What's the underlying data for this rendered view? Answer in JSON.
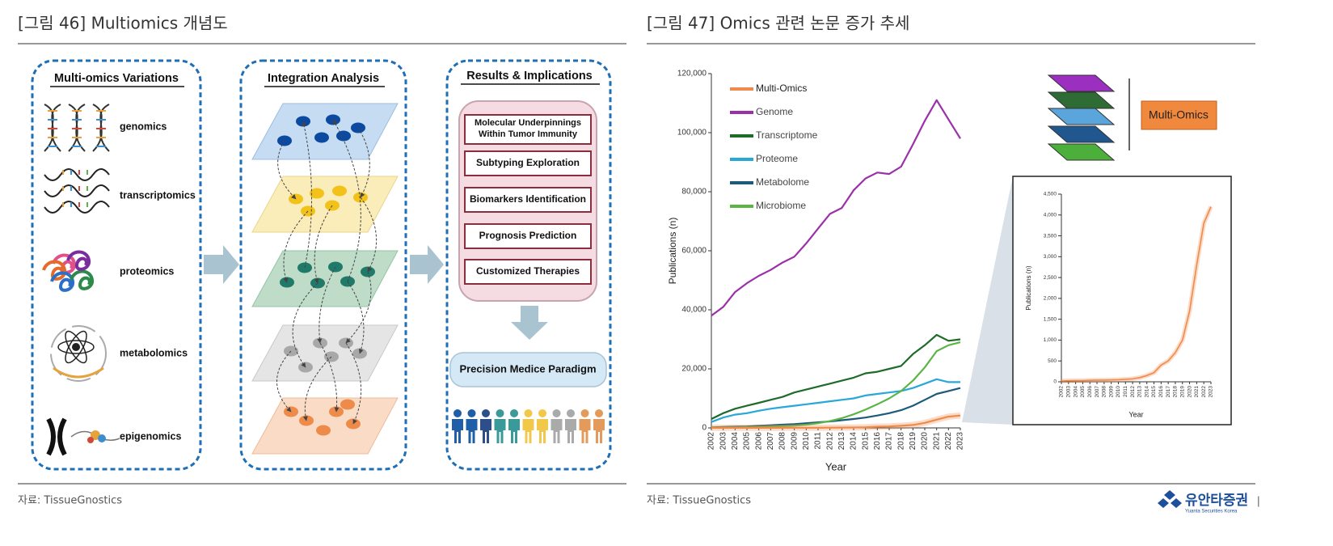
{
  "left_figure": {
    "title": "[그림 46] Multiomics 개념도",
    "source": "자료: TissueGnostics",
    "diagram": {
      "variations": {
        "header": "Multi-omics Variations",
        "items": [
          "genomics",
          "transcriptomics",
          "proteomics",
          "metabolomics",
          "epigenomics"
        ]
      },
      "integration": {
        "header": "Integration Analysis"
      },
      "results": {
        "header": "Results & Implications",
        "items": [
          [
            "Molecular Underpinnings",
            "Within Tumor Immunity"
          ],
          [
            "Subtyping Exploration"
          ],
          [
            "Biomarkers Identification"
          ],
          [
            "Prognosis Prediction"
          ],
          [
            "Customized Therapies"
          ]
        ],
        "outcome": "Precision Medice Paradigm"
      }
    }
  },
  "right_figure": {
    "title": "[그림 47] Omics 관련 논문 증가 추세",
    "source": "자료: TissueGnostics",
    "stack_label": "Multi-Omics"
  },
  "footer": {
    "logo": "유안타증권",
    "logo_sub": "Yuanta Securities Korea",
    "divider": "|"
  },
  "chart_data": [
    {
      "type": "line",
      "xlabel": "Year",
      "ylabel": "Publications (n)",
      "x": [
        2002,
        2003,
        2004,
        2005,
        2006,
        2007,
        2008,
        2009,
        2010,
        2011,
        2012,
        2013,
        2014,
        2015,
        2016,
        2017,
        2018,
        2019,
        2020,
        2021,
        2022,
        2023
      ],
      "xlim": [
        2002,
        2023
      ],
      "ylim": [
        0,
        120000
      ],
      "yticks": [
        0,
        {
          "value": 20000,
          "label": "20,000"
        },
        {
          "value": 40000,
          "label": "40,000"
        },
        {
          "value": 60000,
          "label": "60,000"
        },
        {
          "value": 80000,
          "label": "80,000"
        },
        {
          "value": 100000,
          "label": "100,000"
        },
        {
          "value": 120000,
          "label": "120,000"
        }
      ],
      "grid": false,
      "legend": "upper left",
      "series": [
        {
          "name": "Multi-Omics",
          "color": "#f08a4b",
          "values": [
            20,
            25,
            30,
            30,
            35,
            40,
            40,
            45,
            50,
            60,
            70,
            100,
            150,
            220,
            400,
            500,
            700,
            1000,
            1700,
            2800,
            3800,
            4200
          ]
        },
        {
          "name": "Genome",
          "color": "#9b30a8",
          "values": [
            38000,
            41000,
            46000,
            49000,
            51500,
            53500,
            56000,
            58000,
            62500,
            67500,
            72500,
            74500,
            80500,
            84500,
            86500,
            86000,
            88500,
            96000,
            104000,
            111000,
            104500,
            98000
          ]
        },
        {
          "name": "Transcriptome",
          "color": "#1e6b2a",
          "values": [
            3000,
            5000,
            6500,
            7500,
            8500,
            9500,
            10500,
            12000,
            13000,
            14000,
            15000,
            16000,
            17000,
            18500,
            19000,
            20000,
            21000,
            25000,
            28000,
            31500,
            29500,
            30000
          ]
        },
        {
          "name": "Proteome",
          "color": "#29a8d8",
          "values": [
            2000,
            3500,
            4500,
            5000,
            5800,
            6500,
            7000,
            7500,
            8000,
            8500,
            9000,
            9500,
            10000,
            11000,
            11500,
            12000,
            12500,
            13500,
            15000,
            16500,
            15500,
            15500
          ]
        },
        {
          "name": "Metabolome",
          "color": "#1d5a7a",
          "values": [
            200,
            300,
            400,
            500,
            700,
            900,
            1100,
            1300,
            1600,
            1900,
            2200,
            2600,
            3000,
            3500,
            4200,
            5000,
            6000,
            7500,
            9500,
            11500,
            12500,
            13500
          ]
        },
        {
          "name": "Microbiome",
          "color": "#5bb544",
          "values": [
            100,
            150,
            200,
            250,
            300,
            400,
            600,
            800,
            1100,
            1600,
            2300,
            3300,
            4600,
            6200,
            8000,
            10000,
            12500,
            16000,
            20500,
            26000,
            28000,
            29000
          ]
        }
      ]
    },
    {
      "type": "line",
      "xlabel": "Year",
      "ylabel": "Publications (n)",
      "x": [
        2002,
        2003,
        2004,
        2005,
        2006,
        2007,
        2008,
        2009,
        2010,
        2011,
        2012,
        2013,
        2014,
        2015,
        2016,
        2017,
        2018,
        2019,
        2020,
        2021,
        2022,
        2023
      ],
      "xlim": [
        2002,
        2023
      ],
      "ylim": [
        0,
        4500
      ],
      "yticks": [
        0,
        500,
        {
          "value": 1000,
          "label": "1,000"
        },
        {
          "value": 1500,
          "label": "1,500"
        },
        {
          "value": 2000,
          "label": "2,000"
        },
        {
          "value": 2500,
          "label": "2,500"
        },
        {
          "value": 3000,
          "label": "3,000"
        },
        {
          "value": 3500,
          "label": "3,500"
        },
        {
          "value": 4000,
          "label": "4,000"
        },
        {
          "value": 4500,
          "label": "4,500"
        }
      ],
      "grid": false,
      "series": [
        {
          "name": "Multi-Omics",
          "color": "#f08a4b",
          "values": [
            20,
            25,
            30,
            30,
            35,
            40,
            40,
            45,
            50,
            60,
            70,
            100,
            150,
            220,
            400,
            500,
            700,
            1000,
            1700,
            2800,
            3800,
            4200
          ]
        }
      ]
    }
  ]
}
